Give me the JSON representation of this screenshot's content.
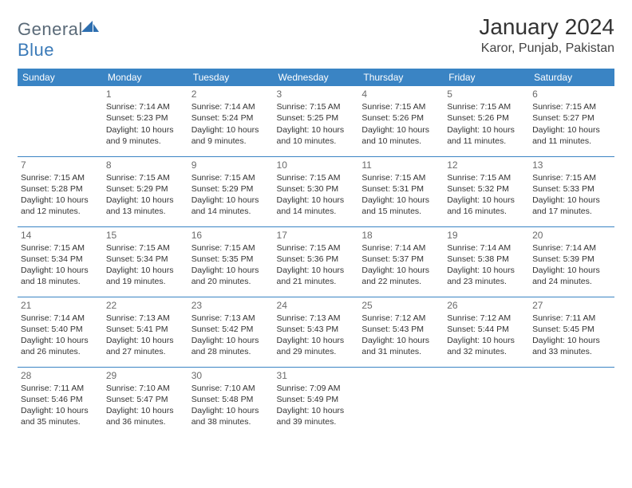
{
  "brand": {
    "name_a": "General",
    "name_b": "Blue"
  },
  "title": "January 2024",
  "location": "Karor, Punjab, Pakistan",
  "header_color": "#3a84c4",
  "day_headers": [
    "Sunday",
    "Monday",
    "Tuesday",
    "Wednesday",
    "Thursday",
    "Friday",
    "Saturday"
  ],
  "weeks": [
    [
      null,
      {
        "n": "1",
        "sr": "7:14 AM",
        "ss": "5:23 PM",
        "dl": "10 hours and 9 minutes."
      },
      {
        "n": "2",
        "sr": "7:14 AM",
        "ss": "5:24 PM",
        "dl": "10 hours and 9 minutes."
      },
      {
        "n": "3",
        "sr": "7:15 AM",
        "ss": "5:25 PM",
        "dl": "10 hours and 10 minutes."
      },
      {
        "n": "4",
        "sr": "7:15 AM",
        "ss": "5:26 PM",
        "dl": "10 hours and 10 minutes."
      },
      {
        "n": "5",
        "sr": "7:15 AM",
        "ss": "5:26 PM",
        "dl": "10 hours and 11 minutes."
      },
      {
        "n": "6",
        "sr": "7:15 AM",
        "ss": "5:27 PM",
        "dl": "10 hours and 11 minutes."
      }
    ],
    [
      {
        "n": "7",
        "sr": "7:15 AM",
        "ss": "5:28 PM",
        "dl": "10 hours and 12 minutes."
      },
      {
        "n": "8",
        "sr": "7:15 AM",
        "ss": "5:29 PM",
        "dl": "10 hours and 13 minutes."
      },
      {
        "n": "9",
        "sr": "7:15 AM",
        "ss": "5:29 PM",
        "dl": "10 hours and 14 minutes."
      },
      {
        "n": "10",
        "sr": "7:15 AM",
        "ss": "5:30 PM",
        "dl": "10 hours and 14 minutes."
      },
      {
        "n": "11",
        "sr": "7:15 AM",
        "ss": "5:31 PM",
        "dl": "10 hours and 15 minutes."
      },
      {
        "n": "12",
        "sr": "7:15 AM",
        "ss": "5:32 PM",
        "dl": "10 hours and 16 minutes."
      },
      {
        "n": "13",
        "sr": "7:15 AM",
        "ss": "5:33 PM",
        "dl": "10 hours and 17 minutes."
      }
    ],
    [
      {
        "n": "14",
        "sr": "7:15 AM",
        "ss": "5:34 PM",
        "dl": "10 hours and 18 minutes."
      },
      {
        "n": "15",
        "sr": "7:15 AM",
        "ss": "5:34 PM",
        "dl": "10 hours and 19 minutes."
      },
      {
        "n": "16",
        "sr": "7:15 AM",
        "ss": "5:35 PM",
        "dl": "10 hours and 20 minutes."
      },
      {
        "n": "17",
        "sr": "7:15 AM",
        "ss": "5:36 PM",
        "dl": "10 hours and 21 minutes."
      },
      {
        "n": "18",
        "sr": "7:14 AM",
        "ss": "5:37 PM",
        "dl": "10 hours and 22 minutes."
      },
      {
        "n": "19",
        "sr": "7:14 AM",
        "ss": "5:38 PM",
        "dl": "10 hours and 23 minutes."
      },
      {
        "n": "20",
        "sr": "7:14 AM",
        "ss": "5:39 PM",
        "dl": "10 hours and 24 minutes."
      }
    ],
    [
      {
        "n": "21",
        "sr": "7:14 AM",
        "ss": "5:40 PM",
        "dl": "10 hours and 26 minutes."
      },
      {
        "n": "22",
        "sr": "7:13 AM",
        "ss": "5:41 PM",
        "dl": "10 hours and 27 minutes."
      },
      {
        "n": "23",
        "sr": "7:13 AM",
        "ss": "5:42 PM",
        "dl": "10 hours and 28 minutes."
      },
      {
        "n": "24",
        "sr": "7:13 AM",
        "ss": "5:43 PM",
        "dl": "10 hours and 29 minutes."
      },
      {
        "n": "25",
        "sr": "7:12 AM",
        "ss": "5:43 PM",
        "dl": "10 hours and 31 minutes."
      },
      {
        "n": "26",
        "sr": "7:12 AM",
        "ss": "5:44 PM",
        "dl": "10 hours and 32 minutes."
      },
      {
        "n": "27",
        "sr": "7:11 AM",
        "ss": "5:45 PM",
        "dl": "10 hours and 33 minutes."
      }
    ],
    [
      {
        "n": "28",
        "sr": "7:11 AM",
        "ss": "5:46 PM",
        "dl": "10 hours and 35 minutes."
      },
      {
        "n": "29",
        "sr": "7:10 AM",
        "ss": "5:47 PM",
        "dl": "10 hours and 36 minutes."
      },
      {
        "n": "30",
        "sr": "7:10 AM",
        "ss": "5:48 PM",
        "dl": "10 hours and 38 minutes."
      },
      {
        "n": "31",
        "sr": "7:09 AM",
        "ss": "5:49 PM",
        "dl": "10 hours and 39 minutes."
      },
      null,
      null,
      null
    ]
  ],
  "labels": {
    "sunrise": "Sunrise:",
    "sunset": "Sunset:",
    "daylight": "Daylight:"
  }
}
